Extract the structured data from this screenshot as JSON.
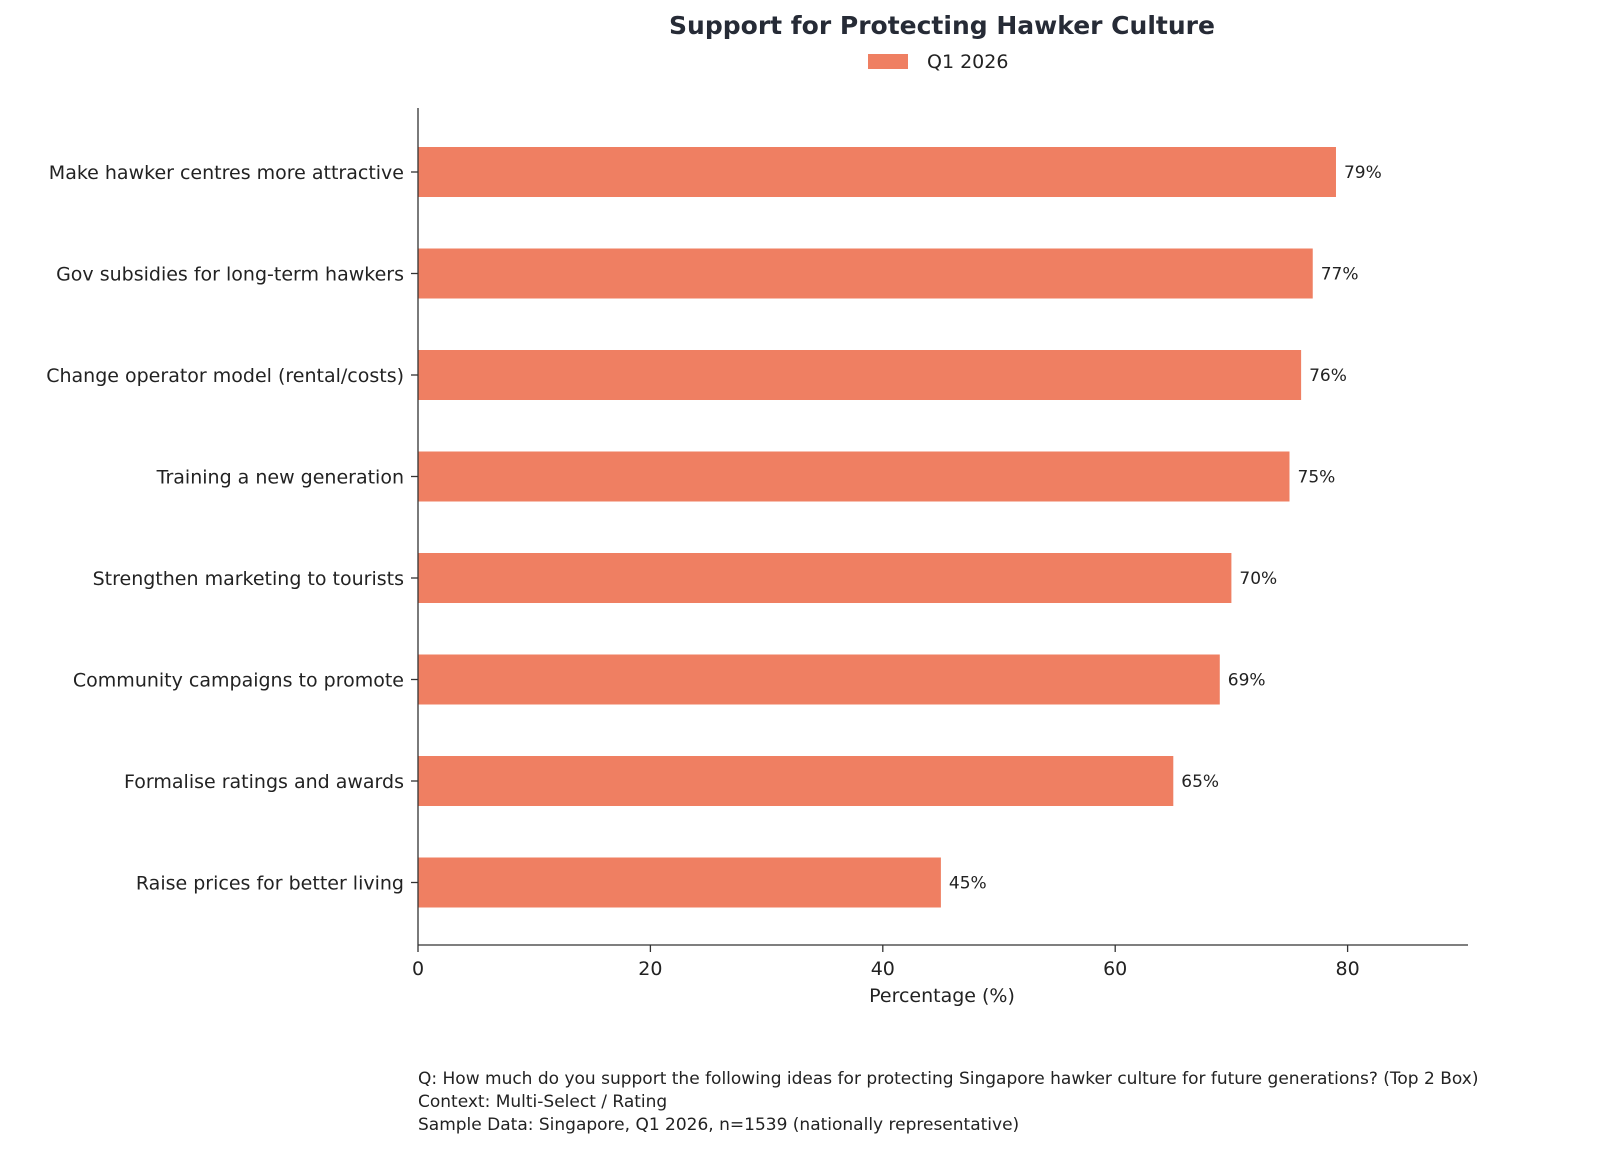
{
  "chart_data": {
    "type": "bar",
    "orientation": "horizontal",
    "title": "Support for Protecting Hawker Culture",
    "xlabel": "Percentage (%)",
    "ylabel": "",
    "xlim": [
      0,
      90.6
    ],
    "xticks": [
      0,
      20,
      40,
      60,
      80
    ],
    "grid": false,
    "legend_position": "top-center",
    "value_label_suffix": "%",
    "categories": [
      "Make hawker centres more attractive",
      "Gov subsidies for long-term hawkers",
      "Change operator model (rental/costs)",
      "Training a new generation",
      "Strengthen marketing to tourists",
      "Community campaigns to promote",
      "Formalise ratings and awards",
      "Raise prices for better living"
    ],
    "series": [
      {
        "name": "Q1 2026",
        "color": "#ef7f62",
        "values": [
          79,
          77,
          76,
          75,
          70,
          69,
          65,
          45
        ]
      }
    ]
  },
  "notes": {
    "question": "Q: How much do you support the following ideas for protecting Singapore hawker culture for future generations? (Top 2 Box)",
    "context": "Context: Multi-Select / Rating",
    "sample": "Sample Data: Singapore, Q1 2026, n=1539 (nationally representative)"
  },
  "colors": {
    "bar": "#ef7f62",
    "axis": "#333333",
    "title": "#262b36"
  }
}
